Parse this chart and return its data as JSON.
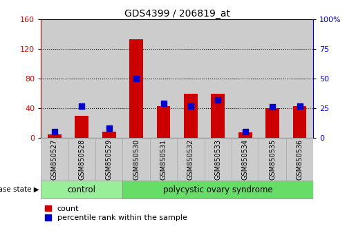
{
  "title": "GDS4399 / 206819_at",
  "samples": [
    "GSM850527",
    "GSM850528",
    "GSM850529",
    "GSM850530",
    "GSM850531",
    "GSM850532",
    "GSM850533",
    "GSM850534",
    "GSM850535",
    "GSM850536"
  ],
  "counts": [
    5,
    30,
    8,
    133,
    43,
    60,
    60,
    7,
    40,
    43
  ],
  "percentiles": [
    5,
    27,
    8,
    50,
    29,
    27,
    32,
    5,
    26,
    27
  ],
  "n_control": 3,
  "left_ylim": [
    0,
    160
  ],
  "right_ylim": [
    0,
    100
  ],
  "left_yticks": [
    0,
    40,
    80,
    120,
    160
  ],
  "right_yticks": [
    0,
    25,
    50,
    75,
    100
  ],
  "bar_color": "#cc0000",
  "dot_color": "#0000cc",
  "control_color": "#99ee99",
  "pcos_color": "#66dd66",
  "col_bg_color": "#cccccc",
  "bar_width": 0.5,
  "dot_size": 40,
  "left_label_color": "#cc0000",
  "right_label_color": "#0000cc",
  "grid_color": "black",
  "control_label": "control",
  "pcos_label": "polycystic ovary syndrome",
  "disease_state_label": "disease state",
  "legend_count": "count",
  "legend_percentile": "percentile rank within the sample"
}
